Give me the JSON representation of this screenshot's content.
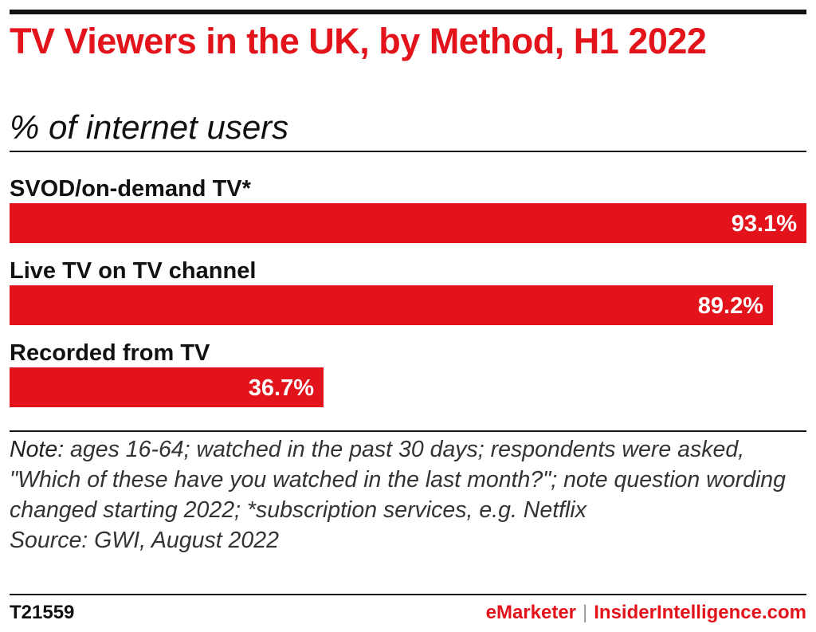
{
  "header": {
    "title": "TV Viewers in the UK, by Method, H1 2022",
    "subtitle": "% of internet users"
  },
  "chart_data": {
    "type": "bar",
    "orientation": "horizontal",
    "categories": [
      "SVOD/on-demand TV*",
      "Live TV on TV channel",
      "Recorded from TV"
    ],
    "values": [
      93.1,
      89.2,
      36.7
    ],
    "value_labels": [
      "93.1%",
      "89.2%",
      "36.7%"
    ],
    "xlim": [
      0,
      100
    ],
    "bar_color": "#e3131b",
    "grid": false,
    "legend": "none"
  },
  "notes": {
    "note_lead": "Note:",
    "note_text": " ages 16-64; watched in the past 30 days; respondents were asked, \"Which of these have you watched in the last month?\"; note question wording changed starting 2022; *subscription services, e.g. Netflix",
    "source": "Source: GWI, August 2022"
  },
  "footer": {
    "chart_id": "T21559",
    "brand_primary": "eMarketer",
    "brand_separator": "|",
    "brand_secondary": "InsiderIntelligence.com"
  }
}
